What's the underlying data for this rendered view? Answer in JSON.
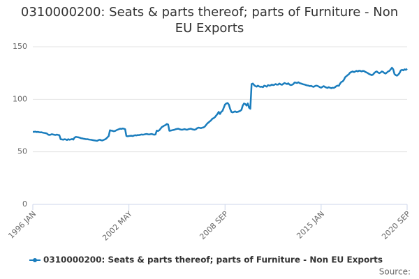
{
  "chart_data": {
    "type": "line",
    "title": "0310000200: Seats & parts thereof; parts of Furniture - Non EU Exports",
    "source": "Source:",
    "categories": [
      "1996 JAN",
      null,
      null,
      null,
      null,
      null,
      null,
      null,
      null,
      null,
      null,
      null,
      null,
      null,
      null,
      null,
      null,
      null,
      null,
      null,
      null,
      null,
      null,
      null,
      null,
      null,
      null,
      null,
      null,
      null,
      null,
      null,
      null,
      null,
      null,
      null,
      null,
      null,
      null,
      null,
      null,
      null,
      null,
      null,
      null,
      null,
      null,
      null,
      null,
      null,
      null,
      null,
      null,
      null,
      null,
      null,
      null,
      null,
      null,
      null,
      null,
      null,
      null,
      null,
      null,
      null,
      null,
      null,
      null,
      null,
      null,
      null,
      null,
      null,
      null,
      null,
      "2002 MAY",
      null,
      null,
      null,
      null,
      null,
      null,
      null,
      null,
      null,
      null,
      null,
      null,
      null,
      null,
      null,
      null,
      null,
      null,
      null,
      null,
      null,
      null,
      null,
      null,
      null,
      null,
      null,
      null,
      null,
      null,
      null,
      null,
      null,
      null,
      null,
      null,
      null,
      null,
      null,
      null,
      null,
      null,
      null,
      null,
      null,
      null,
      null,
      null,
      null,
      null,
      null,
      null,
      null,
      null,
      null,
      null,
      null,
      null,
      null,
      null,
      null,
      null,
      null,
      null,
      null,
      null,
      null,
      null,
      null,
      null,
      null,
      null,
      null,
      null,
      null,
      "2008 SEP",
      null,
      null,
      null,
      null,
      null,
      null,
      null,
      null,
      null,
      null,
      null,
      null,
      null,
      null,
      null,
      null,
      null,
      null,
      null,
      null,
      null,
      null,
      null,
      null,
      null,
      null,
      null,
      null,
      null,
      null,
      null,
      null,
      null,
      null,
      null,
      null,
      null,
      null,
      null,
      null,
      null,
      null,
      null,
      null,
      null,
      null,
      null,
      null,
      null,
      null,
      null,
      null,
      null,
      null,
      null,
      null,
      null,
      null,
      null,
      null,
      null,
      null,
      null,
      null,
      null,
      null,
      null,
      null,
      null,
      null,
      null,
      null,
      null,
      null,
      null,
      "2015 JAN",
      null,
      null,
      null,
      null,
      null,
      null,
      null,
      null,
      null,
      null,
      null,
      null,
      null,
      null,
      null,
      null,
      null,
      null,
      null,
      null,
      null,
      null,
      null,
      null,
      null,
      null,
      null,
      null,
      null,
      null,
      null,
      null,
      null,
      null,
      null,
      null,
      null,
      null,
      null,
      null,
      null,
      null,
      null,
      null,
      null,
      null,
      null,
      null,
      null,
      null,
      null,
      null,
      null,
      null,
      null,
      null,
      null,
      null,
      null,
      null,
      null,
      null,
      null,
      null,
      null,
      null,
      null,
      "2020 SEP"
    ],
    "series": [
      {
        "name": "0310000200: Seats & parts thereof; parts of Furniture - Non EU Exports",
        "color": "#1a7dbd",
        "values": [
          69,
          69,
          69.2,
          68.8,
          69,
          68.7,
          68.5,
          68.6,
          68.2,
          68,
          67.8,
          67.5,
          66.5,
          66,
          66.3,
          66.8,
          66.5,
          66.2,
          66,
          66.4,
          66.1,
          65.8,
          62,
          61.8,
          61.5,
          62,
          61.8,
          61.2,
          62,
          61.5,
          61.8,
          62.2,
          61.6,
          63.5,
          64.2,
          64,
          63.8,
          63.5,
          63,
          62.8,
          62.5,
          62.3,
          62,
          62.1,
          61.8,
          61.6,
          61.5,
          61.2,
          61,
          60.8,
          60.6,
          60.5,
          61.2,
          61.5,
          61,
          60.8,
          61.3,
          61.8,
          62.5,
          63.8,
          65,
          70.5,
          70.2,
          70,
          69.6,
          69.8,
          70.5,
          71,
          71.5,
          72,
          71.8,
          72.2,
          72,
          71.5,
          65,
          64.8,
          65,
          65.2,
          65.3,
          65,
          65.5,
          65.8,
          65.6,
          66,
          65.9,
          66.2,
          66.5,
          66.3,
          66.5,
          66.8,
          67,
          66.7,
          66.5,
          66.8,
          67,
          66.6,
          66.3,
          66.5,
          70.2,
          69.8,
          70.5,
          72,
          73.5,
          74.2,
          75,
          75.5,
          76.5,
          76,
          70,
          70.2,
          70.5,
          70.8,
          71,
          71.5,
          71.8,
          72,
          71.5,
          71.2,
          71,
          71.3,
          71.6,
          71.2,
          71,
          71.5,
          71.8,
          72,
          71.5,
          71.2,
          71,
          71.5,
          72.5,
          73,
          72.8,
          72.5,
          73,
          73.2,
          74,
          75.5,
          77,
          78,
          79,
          80,
          81.5,
          82,
          83,
          84.5,
          86,
          88,
          86,
          88,
          89,
          92,
          95,
          96,
          96.5,
          95,
          91,
          88,
          87.5,
          88,
          88.5,
          87.8,
          88,
          88.5,
          89,
          90,
          94,
          96,
          95.5,
          94,
          96,
          92,
          91,
          114.5,
          115,
          113.5,
          112.5,
          112,
          113,
          112.2,
          111.8,
          112,
          111.5,
          113,
          112.6,
          112,
          113.5,
          113,
          113.2,
          114,
          113.5,
          113.8,
          114.5,
          113.9,
          114,
          115,
          114.2,
          113.8,
          114.6,
          115.5,
          115,
          114.5,
          115.2,
          114,
          113.5,
          113.8,
          114.5,
          116,
          115.8,
          115.5,
          116.2,
          115.4,
          115,
          114.6,
          114.2,
          114,
          113.5,
          113.2,
          113,
          112.5,
          112.8,
          112.2,
          111.8,
          112.5,
          113,
          112.8,
          112.2,
          111.5,
          111,
          111.8,
          112.5,
          111.8,
          111.2,
          110.8,
          111.5,
          111,
          110.5,
          111,
          110.8,
          111.5,
          112.5,
          113,
          112.8,
          115,
          116.5,
          117,
          118.5,
          121,
          122,
          123,
          124,
          125.5,
          126,
          126.5,
          125.8,
          126.5,
          127,
          126.5,
          127.2,
          127,
          126.5,
          127,
          126.8,
          126,
          125.5,
          124.8,
          124,
          123.5,
          123,
          123.5,
          125,
          126,
          126.5,
          125.5,
          124.8,
          125.5,
          126.5,
          126,
          125,
          124.5,
          125.5,
          126.5,
          127,
          128.5,
          130,
          128.5,
          124,
          123,
          122.5,
          123.5,
          125,
          127.5,
          128,
          127.5,
          128.5,
          128,
          129
        ]
      }
    ],
    "ylim": [
      0,
      150
    ],
    "yticks": [
      0,
      50,
      100,
      150
    ],
    "grid": true
  }
}
